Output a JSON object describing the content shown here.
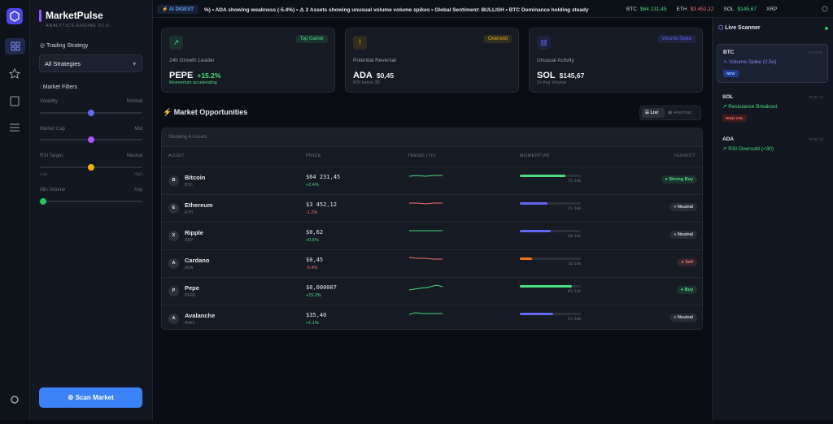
{
  "brand": {
    "title": "MarketPulse",
    "subtitle": "ANALYTICS ENGINE V1.0"
  },
  "sidebar": {
    "strategy_label": "Trading Strategy",
    "strategy_value": "All Strategies",
    "filters_label": "Market Filters",
    "filters": [
      {
        "label": "Volatility",
        "value": "Normal"
      },
      {
        "label": "Market Cap",
        "value": "Mid"
      },
      {
        "label": "RSI Target",
        "value": "Neutral",
        "min": "Low",
        "max": "High"
      },
      {
        "label": "Min Volume",
        "value": "Any"
      }
    ],
    "button": "Scan Market"
  },
  "ticker": {
    "badge": "AI DIGEST",
    "text": "%) • ADA showing weakness (-5.4%) • ⚠ 2 Assets showing unusual volume volume spikes • Global Sentiment: BULLISH • BTC Dominance holding steady",
    "prices": [
      {
        "symbol": "BTC",
        "price": "$64 231,45",
        "color": "#4ade80"
      },
      {
        "symbol": "ETH",
        "price": "$3 452,12",
        "color": "#f87171"
      },
      {
        "symbol": "SOL",
        "price": "$145,67",
        "color": "#4ade80"
      },
      {
        "symbol": "XRP"
      }
    ]
  },
  "cards": [
    {
      "badge": "Top Gainer",
      "label": "24h Growth Leader",
      "symbol": "PEPE",
      "value": "+15.2%",
      "note": "Momentum accelerating",
      "color": "#4ade80"
    },
    {
      "badge": "Oversold",
      "label": "Potential Reversal",
      "symbol": "ADA",
      "value": "$0,45",
      "note": "RSI below 30",
      "color": "#eab308"
    },
    {
      "badge": "Volume Spike",
      "label": "Unusual Activity",
      "symbol": "SOL",
      "value": "$145,67",
      "note": "2x Avg Volume",
      "color": "#6366f1"
    }
  ],
  "opportunities": {
    "title": "Market Opportunities",
    "views": [
      "List",
      "Heatmap"
    ],
    "count_label": "Showing 6 Assets",
    "columns": [
      "ASSET",
      "PRICE",
      "TREND (7D)",
      "MOMENTUM",
      "VERDICT"
    ],
    "momentum_scale": 100,
    "rows": [
      {
        "avatar": "B",
        "name": "Bitcoin",
        "symbol": "BTC",
        "price": "$64 231,45",
        "change": "+2.4%",
        "momentum": {
          "value": 75,
          "label": "75/100"
        },
        "momentum_color": "#4ade80",
        "verdict": "Strong Buy",
        "verdict_color": "#4ade80"
      },
      {
        "avatar": "E",
        "name": "Ethereum",
        "symbol": "ETH",
        "price": "$3 452,12",
        "change": "-1.2%",
        "momentum": {
          "value": 45,
          "label": "45/100"
        },
        "momentum_color": "#6366f1",
        "verdict": "Neutral",
        "verdict_color": "#9ca3af"
      },
      {
        "avatar": "X",
        "name": "Ripple",
        "symbol": "XRP",
        "price": "$0,62",
        "change": "+0.5%",
        "momentum": {
          "value": 50,
          "label": "50/100"
        },
        "momentum_color": "#6366f1",
        "verdict": "Neutral",
        "verdict_color": "#9ca3af"
      },
      {
        "avatar": "A",
        "name": "Cardano",
        "symbol": "ADA",
        "price": "$0,45",
        "change": "-5.4%",
        "momentum": {
          "value": 20,
          "label": "20/100"
        },
        "momentum_color": "#f97316",
        "verdict": "Sell",
        "verdict_color": "#f87171"
      },
      {
        "avatar": "P",
        "name": "Pepe",
        "symbol": "PEPE",
        "price": "$0,000007",
        "change": "+15.2%",
        "momentum": {
          "value": 85,
          "label": "85/100"
        },
        "momentum_color": "#4ade80",
        "verdict": "Buy",
        "verdict_color": "#4ade80"
      },
      {
        "avatar": "A",
        "name": "Avalanche",
        "symbol": "AVAX",
        "price": "$35,40",
        "change": "+1.1%",
        "momentum": {
          "value": 55,
          "label": "55/100"
        },
        "momentum_color": "#6366f1",
        "verdict": "Neutral",
        "verdict_color": "#9ca3af"
      }
    ]
  },
  "scanner": {
    "title": "Live Scanner",
    "items": [
      {
        "symbol": "BTC",
        "time": "09:42:45",
        "signal": "Volume Spike (2.5x)",
        "badge": "NEW"
      },
      {
        "symbol": "SOL",
        "time": "09:41:12",
        "signal": "Resistance Breakout",
        "badge": "HIGH VOL"
      },
      {
        "symbol": "ADA",
        "time": "09:38:10",
        "signal": "RSI Oversold (<30)"
      }
    ]
  }
}
